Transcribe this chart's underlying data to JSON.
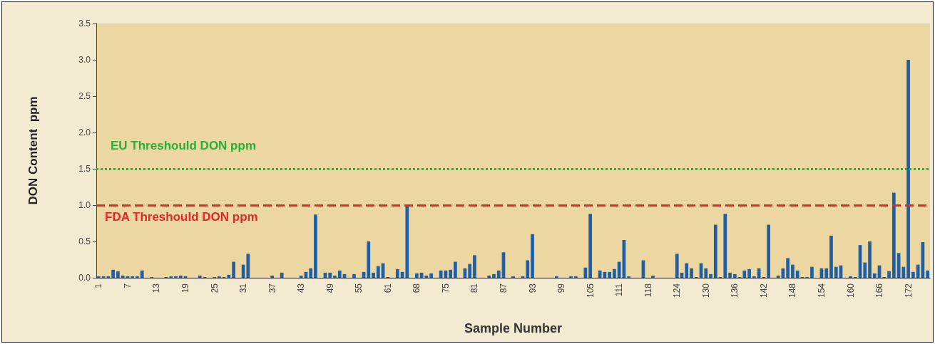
{
  "chart_data": {
    "type": "bar",
    "xlabel": "Sample Number",
    "ylabel": "DON Content  ppm",
    "color": "#1f5fa6",
    "categories": [
      "1",
      null,
      null,
      null,
      null,
      null,
      "7",
      null,
      null,
      null,
      null,
      null,
      "13",
      null,
      null,
      null,
      null,
      null,
      "19",
      null,
      null,
      null,
      null,
      null,
      "25",
      null,
      null,
      null,
      null,
      null,
      "31",
      null,
      null,
      null,
      null,
      null,
      "37",
      null,
      null,
      null,
      null,
      null,
      "43",
      null,
      null,
      null,
      null,
      null,
      "49",
      null,
      null,
      null,
      null,
      null,
      "55",
      null,
      null,
      null,
      null,
      null,
      "61",
      null,
      null,
      null,
      null,
      null,
      "68",
      null,
      null,
      null,
      null,
      null,
      "75",
      null,
      null,
      null,
      null,
      null,
      "81",
      null,
      null,
      null,
      null,
      null,
      "87",
      null,
      null,
      null,
      null,
      null,
      "93",
      null,
      null,
      null,
      null,
      null,
      "99",
      null,
      null,
      null,
      null,
      null,
      "105",
      null,
      null,
      null,
      null,
      null,
      "111",
      null,
      null,
      null,
      null,
      null,
      "118",
      null,
      null,
      null,
      null,
      null,
      "124",
      null,
      null,
      null,
      null,
      null,
      "130",
      null,
      null,
      null,
      null,
      null,
      "136",
      null,
      null,
      null,
      null,
      null,
      "142",
      null,
      null,
      null,
      null,
      null,
      "148",
      null,
      null,
      null,
      null,
      null,
      "154",
      null,
      null,
      null,
      null,
      null,
      "160",
      null,
      null,
      null,
      null,
      null,
      "166",
      null,
      null,
      null,
      null,
      null,
      "172",
      null,
      null,
      null,
      null
    ],
    "values": [
      0.02,
      0.02,
      0.02,
      0.11,
      0.09,
      0.03,
      0.02,
      0.02,
      0.02,
      0.1,
      0,
      0.01,
      0,
      0,
      0.01,
      0.02,
      0.02,
      0.03,
      0.02,
      0,
      0,
      0.03,
      0.01,
      0,
      0.01,
      0.02,
      0.01,
      0.04,
      0.22,
      0,
      0.18,
      0.33,
      0,
      0,
      0,
      0,
      0.03,
      0,
      0.07,
      0,
      0,
      0,
      0.03,
      0.08,
      0.13,
      0.87,
      0,
      0.07,
      0.07,
      0.03,
      0.1,
      0.05,
      0,
      0.05,
      0,
      0.08,
      0.5,
      0.07,
      0.16,
      0.2,
      0.01,
      0,
      0.12,
      0.08,
      0.98,
      0,
      0.06,
      0.07,
      0.03,
      0.06,
      0,
      0.1,
      0.1,
      0.11,
      0.22,
      0,
      0.13,
      0.19,
      0.31,
      0,
      0,
      0.03,
      0.05,
      0.1,
      0.35,
      0,
      0.02,
      0,
      0.02,
      0.24,
      0.6,
      0,
      0,
      0,
      0,
      0.02,
      0,
      0,
      0.02,
      0.02,
      0,
      0.14,
      0.88,
      0,
      0.1,
      0.08,
      0.08,
      0.12,
      0.22,
      0.52,
      0.02,
      0,
      0,
      0.24,
      0,
      0.03,
      0,
      0,
      0,
      0,
      0.33,
      0.07,
      0.2,
      0.13,
      0.01,
      0.2,
      0.13,
      0.05,
      0.73,
      0.01,
      0.88,
      0.07,
      0.05,
      0.01,
      0.1,
      0.12,
      0.02,
      0.13,
      0.01,
      0.73,
      0,
      0.03,
      0.13,
      0.27,
      0.18,
      0.1,
      0.01,
      0.01,
      0.15,
      0,
      0.13,
      0.13,
      0.58,
      0.15,
      0.17,
      0,
      0.02,
      0.01,
      0.45,
      0.21,
      0.5,
      0.06,
      0.17,
      0.01,
      0.09,
      1.17,
      0.34,
      0.15,
      3.0,
      0.08,
      0.18,
      0.49,
      0.1
    ],
    "ylim": [
      0,
      3.5
    ],
    "yticks": [
      {
        "value": 0,
        "label": "0.0"
      },
      {
        "value": 0.5,
        "label": "0.5"
      },
      {
        "value": 1,
        "label": "1.0"
      },
      {
        "value": 1.5,
        "label": "1.5"
      },
      {
        "value": 2,
        "label": "2.0"
      },
      {
        "value": 2.5,
        "label": "2.5"
      },
      {
        "value": 3,
        "label": "3.0"
      },
      {
        "value": 3.5,
        "label": "3.5"
      }
    ],
    "ref_lines": [
      {
        "axis": "y",
        "value": 1.5,
        "label": "EU Threshould DON ppm",
        "color": "#22b03a",
        "line_style": "dotted"
      },
      {
        "axis": "y",
        "value": 1,
        "label": "FDA Threshould DON ppm",
        "color": "#e8262a",
        "line_style": "dashed"
      }
    ],
    "data_labels": false
  }
}
